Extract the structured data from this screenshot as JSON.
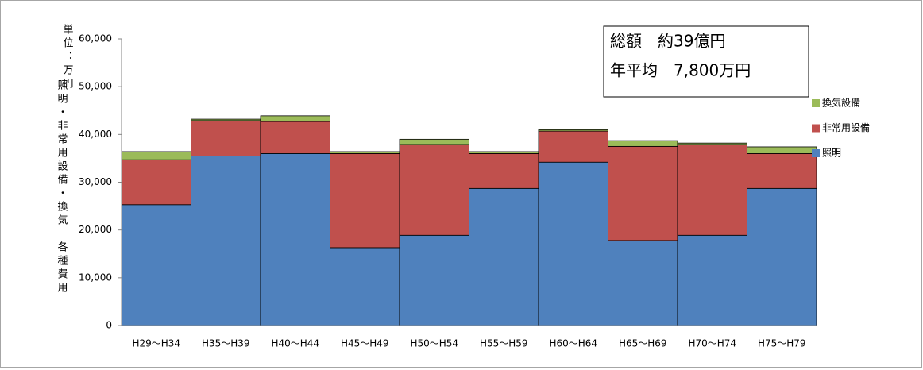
{
  "chart_data": {
    "type": "stacked_bar",
    "y_label": "照明・非常用設備・換気　各種費用",
    "unit_label": "単位：万円",
    "annotations": [
      "総額　約39億円",
      "年平均　7,800万円"
    ],
    "categories": [
      "H29〜H34",
      "H35〜H39",
      "H40〜H44",
      "H45〜H49",
      "H50〜H54",
      "H55〜H59",
      "H60〜H64",
      "H65〜H69",
      "H70〜H74",
      "H75〜H79"
    ],
    "series": [
      {
        "name": "照明",
        "color": "#4f81bd",
        "values": [
          25300,
          35500,
          36000,
          16300,
          18900,
          28700,
          34200,
          17800,
          18900,
          28700
        ]
      },
      {
        "name": "非常用設備",
        "color": "#c0504d",
        "values": [
          9400,
          7400,
          6700,
          19700,
          19000,
          7300,
          6500,
          19700,
          19000,
          7300
        ]
      },
      {
        "name": "換気設備",
        "color": "#9bbb59",
        "values": [
          1700,
          300,
          1200,
          400,
          1100,
          400,
          300,
          1200,
          300,
          1400
        ]
      }
    ],
    "ylim": [
      0,
      60000
    ],
    "yticks": [
      0,
      {
        "value": 10000,
        "label": "10,000"
      },
      {
        "value": 20000,
        "label": "20,000"
      },
      {
        "value": 30000,
        "label": "30,000"
      },
      {
        "value": 40000,
        "label": "40,000"
      },
      {
        "value": 50000,
        "label": "50,000"
      },
      {
        "value": 60000,
        "label": "60,000"
      }
    ],
    "grid": false,
    "legend": "right"
  }
}
